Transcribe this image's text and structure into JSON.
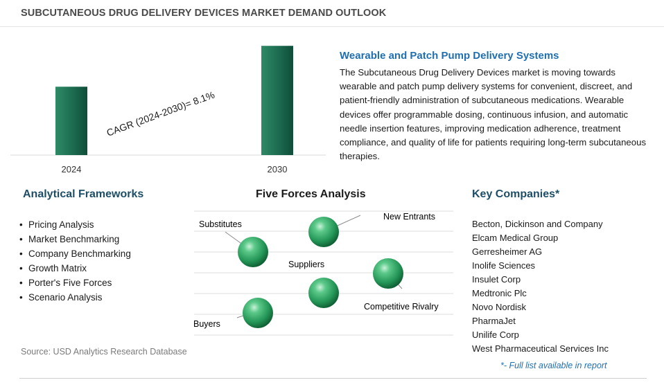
{
  "header": {
    "title": "SUBCUTANEOUS DRUG DELIVERY DEVICES MARKET DEMAND OUTLOOK"
  },
  "chart_data": {
    "type": "bar",
    "categories": [
      "2024",
      "2030"
    ],
    "values": [
      1,
      1.5977
    ],
    "ylim": [
      0,
      1.6
    ],
    "annotation": "CAGR (2024-2030)=  8.1%",
    "bar_color": "#1e6e52",
    "grid": false,
    "legend": "none"
  },
  "trend": {
    "title": "Wearable and Patch Pump Delivery Systems",
    "body": "The Subcutaneous Drug Delivery Devices market is moving towards wearable and patch pump delivery systems for convenient, discreet, and patient-friendly administration of subcutaneous medications. Wearable devices offer programmable dosing, continuous infusion, and automatic needle insertion features, improving medication adherence, treatment compliance, and quality of life for patients requiring long-term subcutaneous therapies."
  },
  "frameworks": {
    "title": "Analytical Frameworks",
    "items": [
      "Pricing Analysis",
      "Market Benchmarking",
      "Company Benchmarking",
      "Growth Matrix",
      "Porter's Five Forces",
      "Scenario Analysis"
    ]
  },
  "five_forces": {
    "title": "Five Forces Analysis",
    "labels": {
      "substitutes": "Substitutes",
      "new_entrants": "New Entrants",
      "suppliers": "Suppliers",
      "competitive_rivalry": "Competitive Rivalry",
      "buyers": "Buyers"
    },
    "sphere_color": "#2fa567"
  },
  "companies": {
    "title": "Key Companies*",
    "items": [
      "Becton, Dickinson and Company",
      "Elcam Medical Group",
      "Gerresheimer AG",
      "Inolife Sciences",
      "Insulet Corp",
      "Medtronic Plc",
      "Novo Nordisk",
      "PharmaJet",
      "Unilife Corp",
      "West Pharmaceutical Services Inc"
    ],
    "note": "*- Full list available in report"
  },
  "source": "Source: USD Analytics Research Database"
}
